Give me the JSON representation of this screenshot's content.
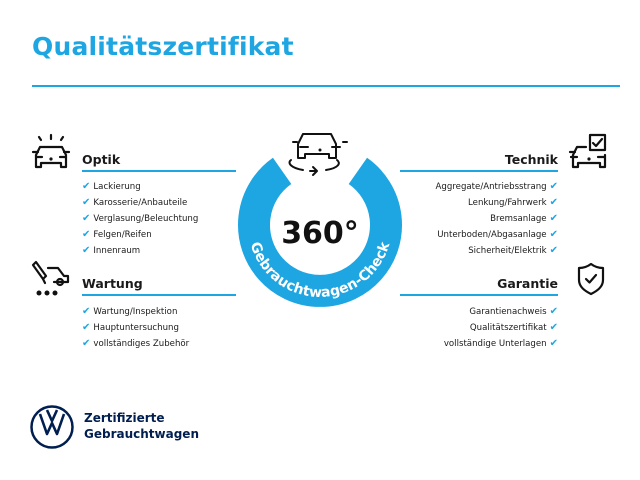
{
  "title": "Qualitätszertifikat",
  "accent_color": "#1ea6e3",
  "center": {
    "big": "360°",
    "ring_text": "Gebrauchtwagen-Check",
    "icon": "car-rotate-icon"
  },
  "sections": {
    "optik": {
      "title": "Optik",
      "icon": "car-lights-icon",
      "items": [
        "Lackierung",
        "Karosserie/Anbauteile",
        "Verglasung/Beleuchtung",
        "Felgen/Reifen",
        "Innenraum"
      ]
    },
    "wartung": {
      "title": "Wartung",
      "icon": "service-car-icon",
      "items": [
        "Wartung/Inspektion",
        "Hauptuntersuchung",
        "vollständiges Zubehör"
      ]
    },
    "technik": {
      "title": "Technik",
      "icon": "car-checkbox-icon",
      "items": [
        "Aggregate/Antriebsstrang",
        "Lenkung/Fahrwerk",
        "Bremsanlage",
        "Unterboden/Abgasanlage",
        "Sicherheit/Elektrik"
      ]
    },
    "garantie": {
      "title": "Garantie",
      "icon": "shield-check-icon",
      "items": [
        "Garantienachweis",
        "Qualitätszertifikat",
        "vollständige Unterlagen"
      ]
    }
  },
  "check_glyph": "✔",
  "brand": {
    "line1": "Zertifizierte",
    "line2": "Gebrauchtwagen",
    "logo": "vw-logo",
    "color": "#001e50"
  }
}
